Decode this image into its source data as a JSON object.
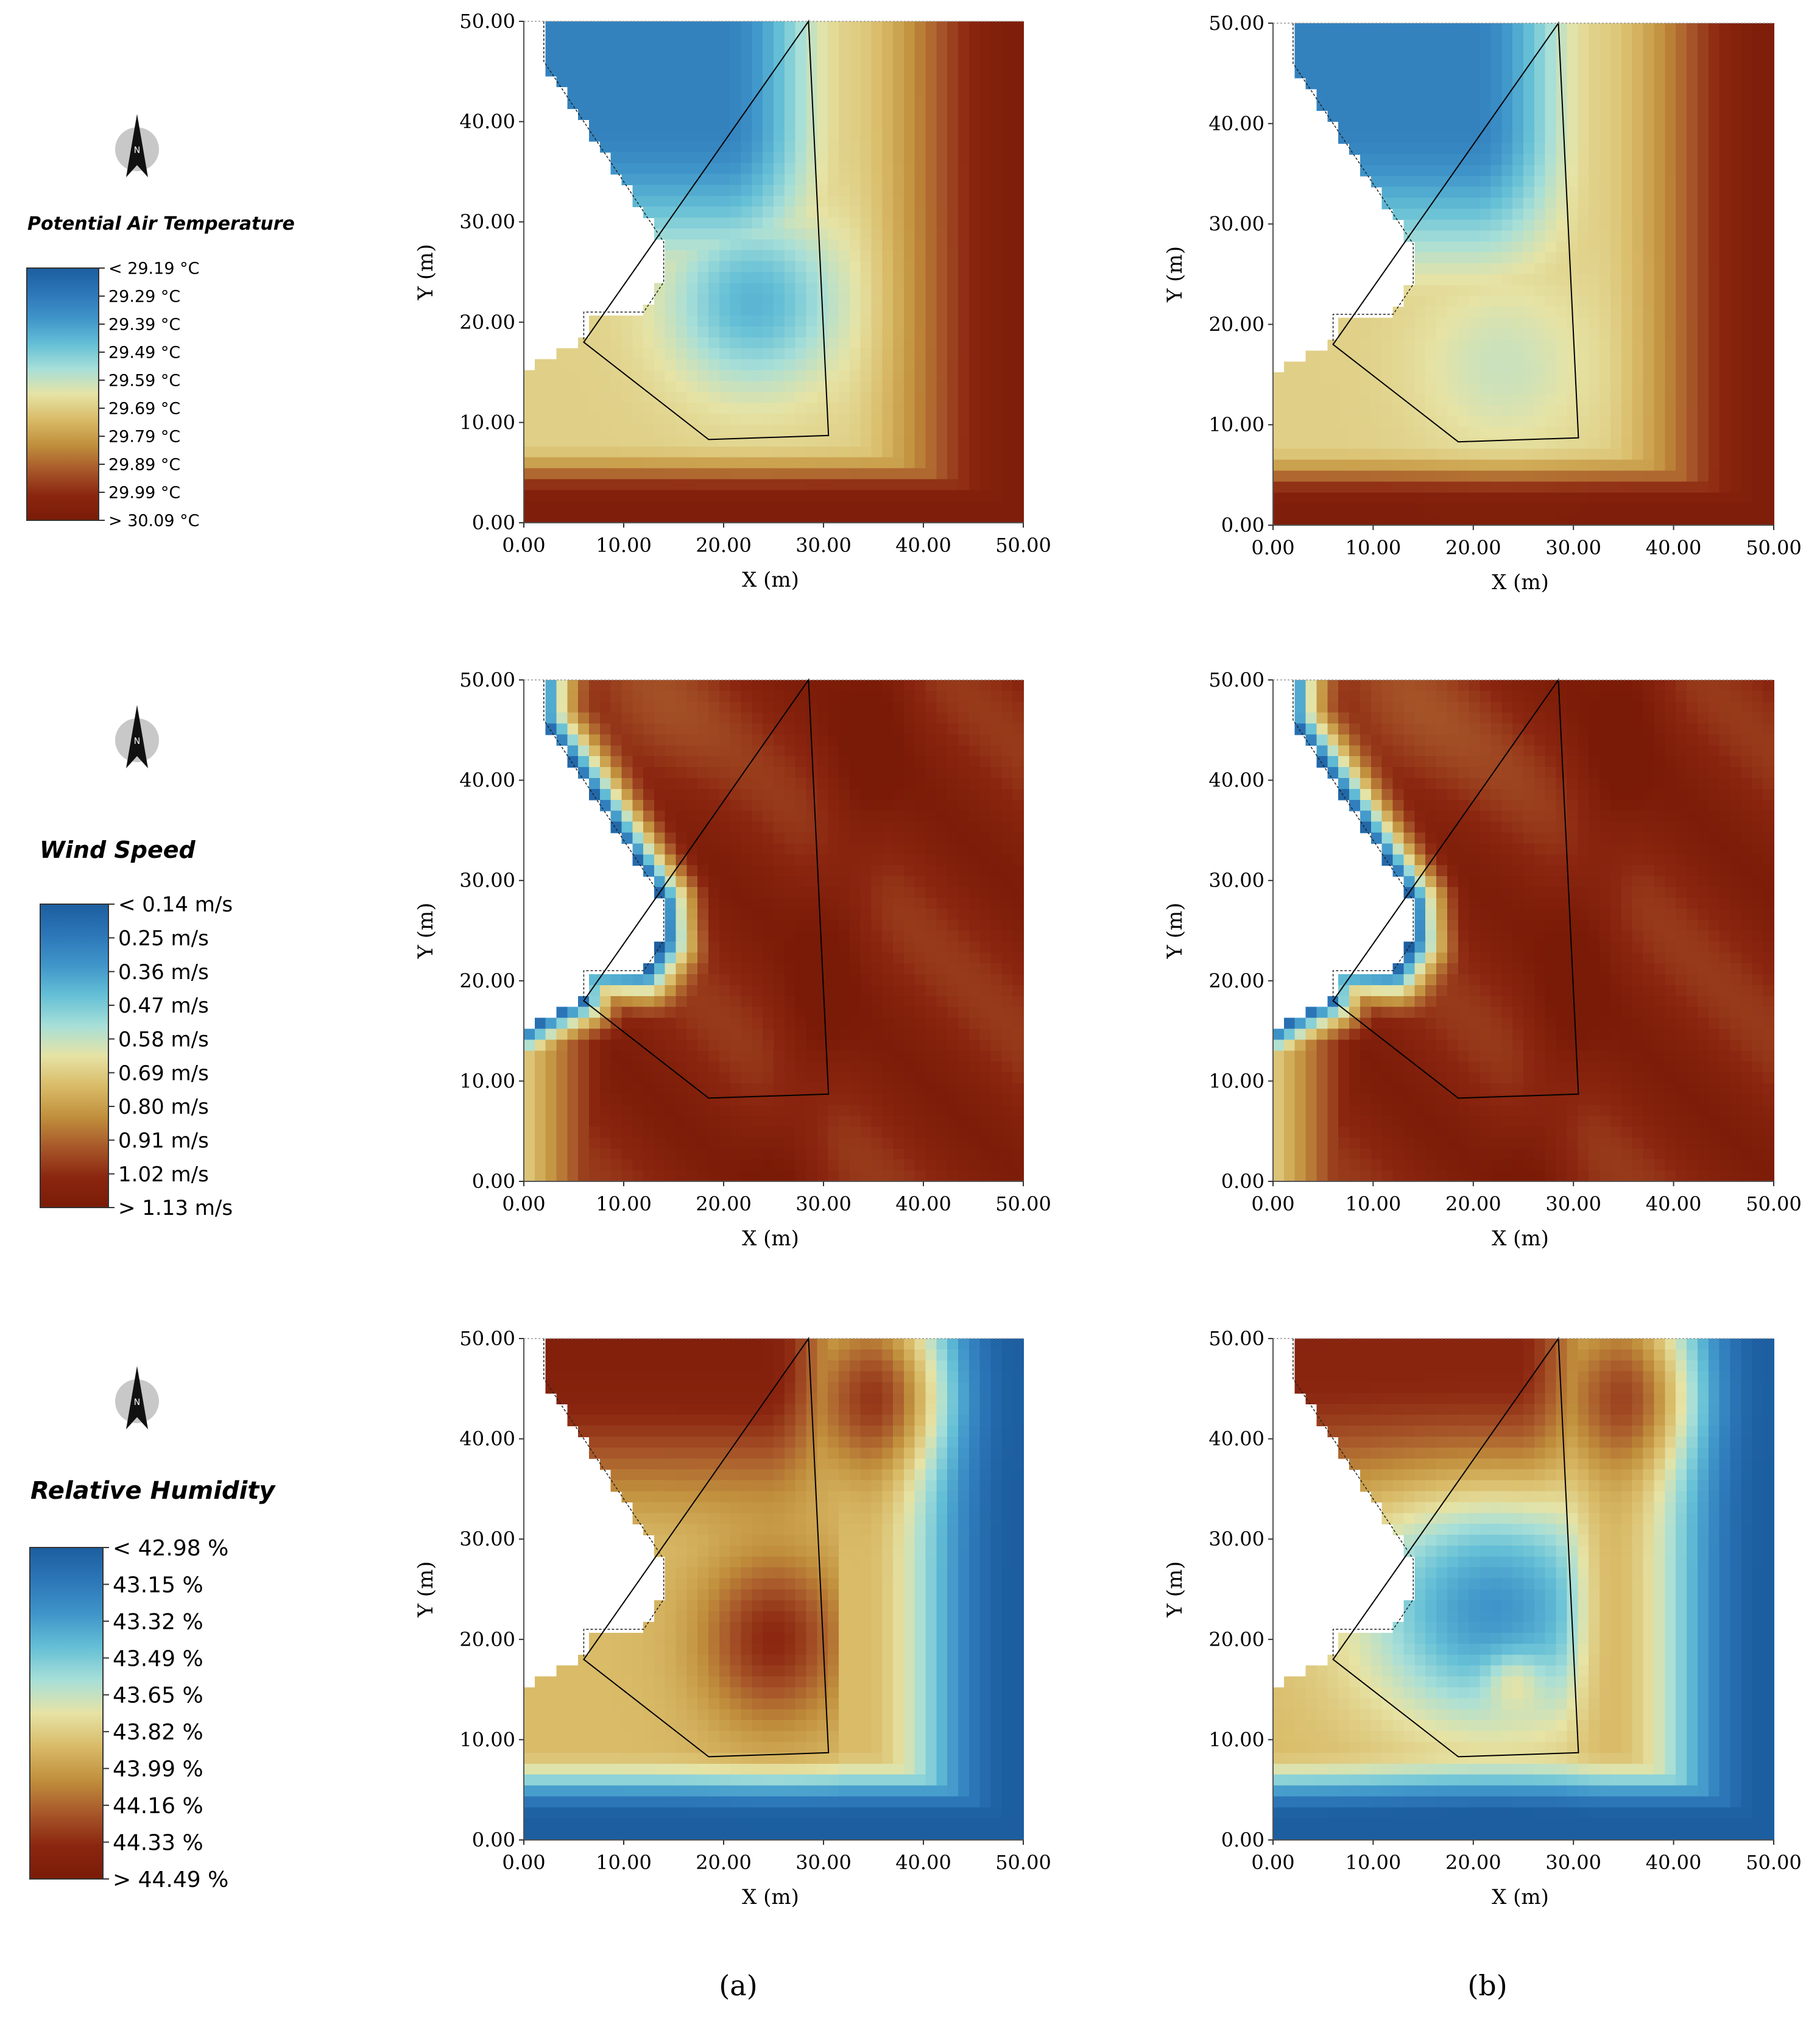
{
  "figure": {
    "panel_labels": [
      "(a)",
      "(b)"
    ],
    "north_arrow_letter": "N",
    "axes": {
      "x_label": "X (m)",
      "y_label": "Y (m)",
      "tick_labels": [
        "0.00",
        "10.00",
        "20.00",
        "30.00",
        "40.00",
        "50.00"
      ]
    },
    "colors": {
      "scale": [
        "#1c5e9f",
        "#2c76b8",
        "#3f95c9",
        "#64bfd6",
        "#a7dfd8",
        "#e6e3a5",
        "#d9bb68",
        "#c1903d",
        "#a8582a",
        "#8b2610",
        "#7a1b07"
      ],
      "building_outline": "#000000"
    }
  },
  "chart_data": [
    {
      "type": "heatmap",
      "variable": "Potential Air Temperature",
      "legend_title": "Potential Air Temperature",
      "legend_labels": [
        "< 29.19 °C",
        "29.29  °C",
        "29.39  °C",
        "29.49  °C",
        "29.59  °C",
        "29.69  °C",
        "29.79  °C",
        "29.89  °C",
        "29.99  °C",
        "> 30.09 °C"
      ],
      "thresholds": [
        29.19,
        29.29,
        29.39,
        29.49,
        29.59,
        29.69,
        29.79,
        29.89,
        29.99,
        30.09
      ],
      "xlabel": "X (m)",
      "ylabel": "Y (m)",
      "xlim": [
        0,
        50
      ],
      "ylim": [
        0,
        50
      ],
      "panels": [
        {
          "label": "(a)",
          "hot_corner": [
            23,
            22
          ]
        },
        {
          "label": "(b)",
          "hot_corner": [
            23,
            16
          ]
        }
      ]
    },
    {
      "type": "heatmap",
      "variable": "Wind Speed",
      "legend_title": "Wind Speed",
      "legend_labels": [
        "< 0.14 m/s",
        "0.25  m/s",
        "0.36  m/s",
        "0.47  m/s",
        "0.58  m/s",
        "0.69  m/s",
        "0.80  m/s",
        "0.91  m/s",
        "1.02  m/s",
        "> 1.13 m/s"
      ],
      "thresholds": [
        0.14,
        0.25,
        0.36,
        0.47,
        0.58,
        0.69,
        0.8,
        0.91,
        1.02,
        1.13
      ],
      "xlabel": "X (m)",
      "ylabel": "Y (m)",
      "xlim": [
        0,
        50
      ],
      "ylim": [
        0,
        50
      ],
      "panels": [
        {
          "label": "(a)"
        },
        {
          "label": "(b)"
        }
      ]
    },
    {
      "type": "heatmap",
      "variable": "Relative Humidity",
      "legend_title": "Relative Humidity",
      "legend_labels": [
        "< 42.98 %",
        "43.15  %",
        "43.32  %",
        "43.49  %",
        "43.65  %",
        "43.82  %",
        "43.99  %",
        "44.16  %",
        "44.33  %",
        "> 44.49 %"
      ],
      "thresholds": [
        42.98,
        43.15,
        43.32,
        43.49,
        43.65,
        43.82,
        43.99,
        44.16,
        44.33,
        44.49
      ],
      "xlabel": "X (m)",
      "ylabel": "Y (m)",
      "xlim": [
        0,
        50
      ],
      "ylim": [
        0,
        50
      ],
      "panels": [
        {
          "label": "(a)",
          "cool_spot": [
            25,
            16
          ]
        },
        {
          "label": "(b)",
          "cool_spot": [
            24,
            16
          ]
        }
      ]
    }
  ]
}
